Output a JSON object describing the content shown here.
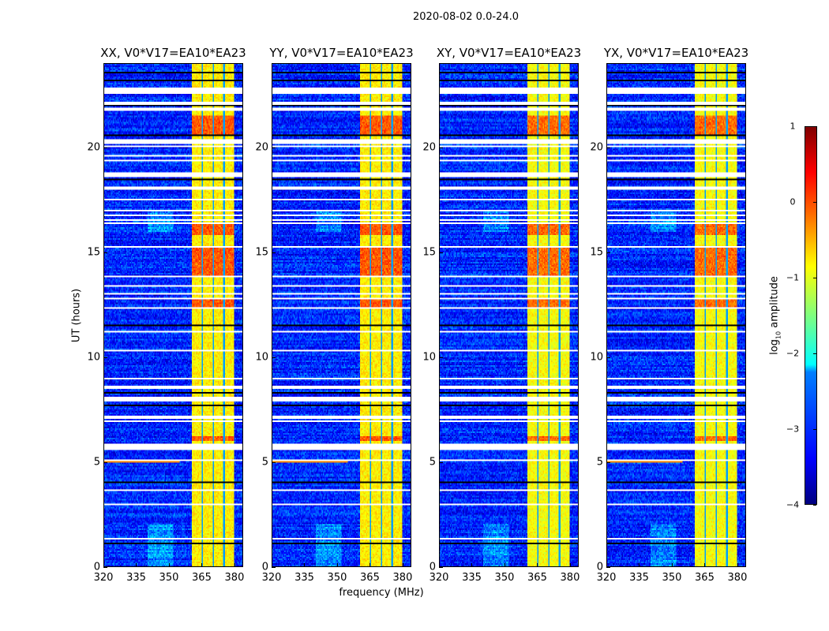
{
  "suptitle": "2020-08-02 0.0-24.0",
  "chart_data": {
    "type": "heatmap",
    "title": "2020-08-02 0.0-24.0",
    "xlabel": "frequency (MHz)",
    "ylabel": "UT (hours)",
    "xlim": [
      320,
      384
    ],
    "ylim": [
      0,
      24
    ],
    "x_ticks": [
      "320",
      "335",
      "350",
      "365",
      "380"
    ],
    "x_tick_values": [
      320,
      335,
      350,
      365,
      380
    ],
    "y_ticks": [
      "0",
      "5",
      "10",
      "15",
      "20"
    ],
    "y_tick_values": [
      0,
      5,
      10,
      15,
      20
    ],
    "panels": [
      {
        "title": "XX, V0*V17=EA10*EA23"
      },
      {
        "title": "YY, V0*V17=EA10*EA23"
      },
      {
        "title": "XY, V0*V17=EA10*EA23"
      },
      {
        "title": "YX, V0*V17=EA10*EA23"
      }
    ],
    "background_log10_amplitude": -3.2,
    "rfi_band_mhz": [
      360.5,
      380
    ],
    "rfi_band_log10_amplitude": -0.8,
    "rfi_band_gaps_mhz": [
      365.5,
      370.5,
      375.5
    ],
    "strong_rfi_hours": [
      [
        12.4,
        12.8
      ],
      [
        13.8,
        15.3
      ],
      [
        15.8,
        16.4
      ],
      [
        20.6,
        21.5
      ],
      [
        6.0,
        6.2
      ]
    ],
    "flagged_hours": [
      [
        22.6,
        22.9
      ],
      [
        20.2,
        20.4
      ],
      [
        18.6,
        18.8
      ],
      [
        8.5,
        8.65
      ],
      [
        5.55,
        5.75
      ]
    ],
    "colorbar": {
      "label": "log10 amplitude",
      "range": [
        -4,
        1
      ],
      "ticks": [
        "1",
        "0",
        "−1",
        "−2",
        "−3",
        "−4"
      ],
      "tick_values": [
        1,
        0,
        -1,
        -2,
        -3,
        -4
      ],
      "colormap": "jet"
    }
  }
}
